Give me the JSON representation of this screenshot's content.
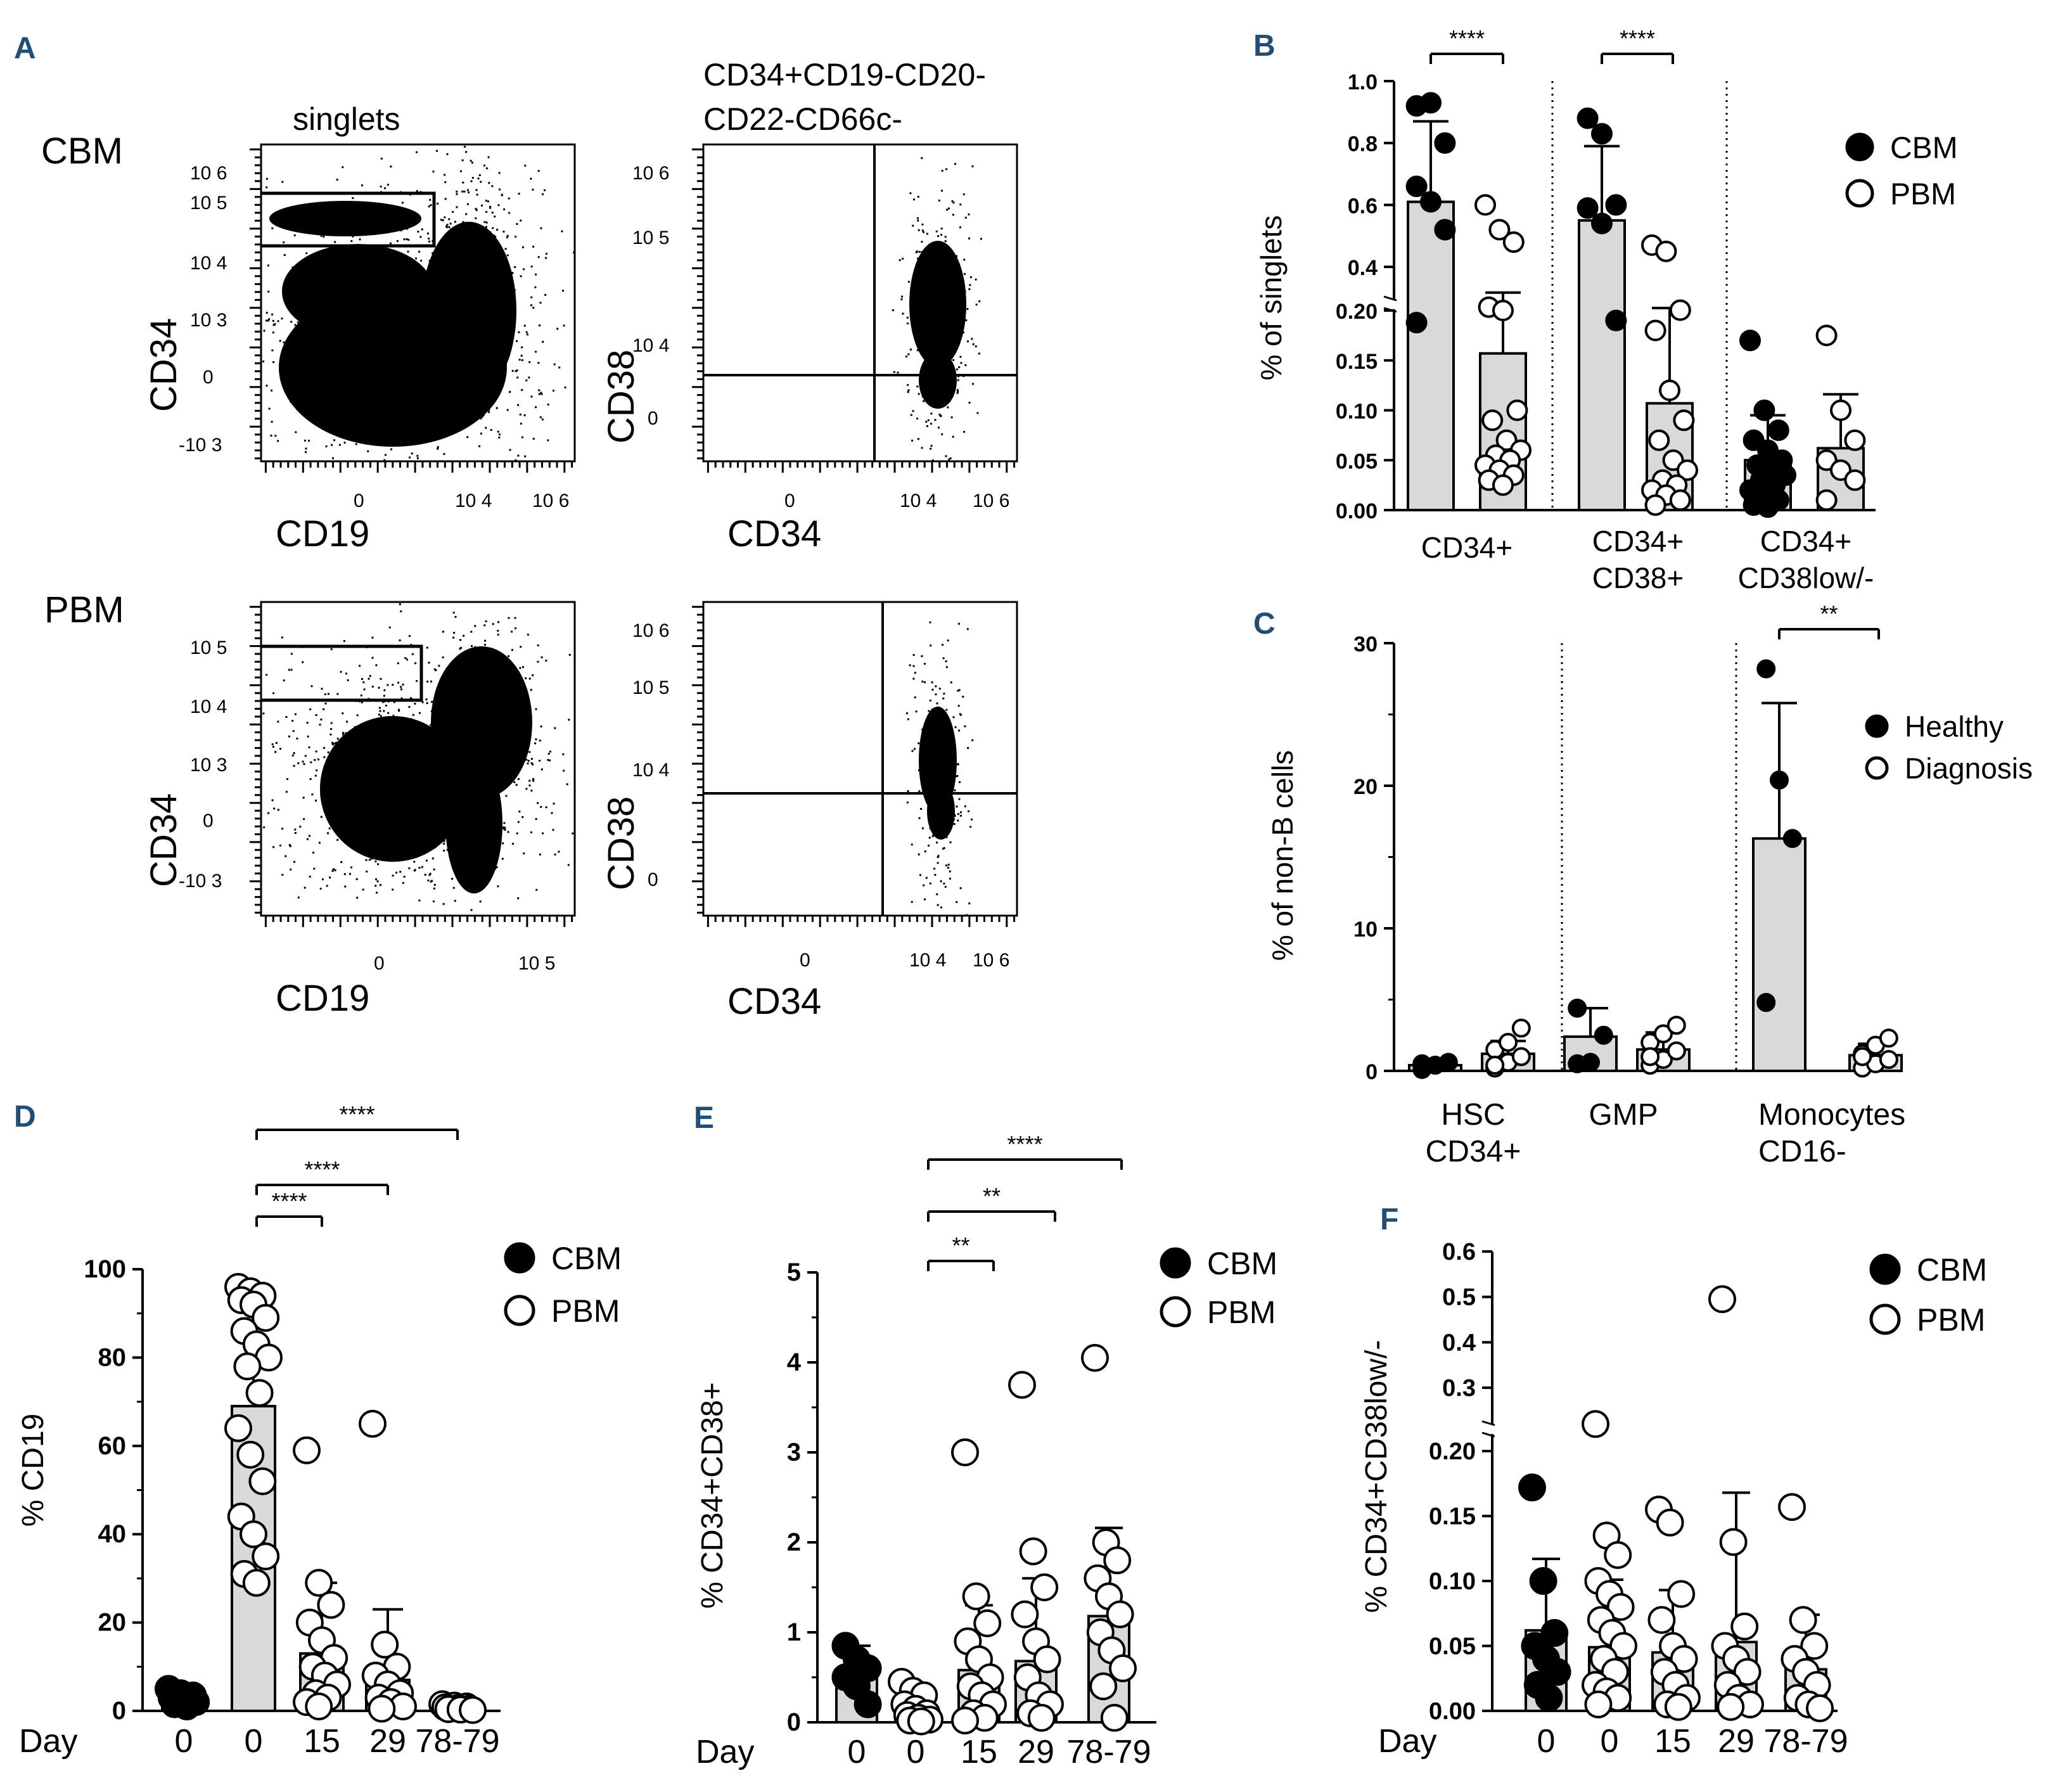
{
  "colors": {
    "panel_letter": "#1f4e79",
    "bar_fill": "#d9d9d9",
    "ink": "#000000",
    "paper": "#ffffff"
  },
  "flow": {
    "cbm_label": "CBM",
    "pbm_label": "PBM",
    "singlets_title": "singlets",
    "gate_title_line1": "CD34+CD19-CD20-",
    "gate_title_line2": "CD22-CD66c-",
    "axis_cd19": "CD19",
    "axis_cd34": "CD34",
    "axis_cd38": "CD38",
    "tick_labels": {
      "zero": "0",
      "e3": "10 3",
      "e4": "10 4",
      "e5": "10 5",
      "e6": "10 6",
      "neg_e3": "-10 3"
    }
  },
  "chart_data": [
    {
      "panel": "B",
      "type": "bar",
      "ylabel": "% of singlets",
      "categories": [
        "CD34+",
        "CD34+\nCD38+",
        "CD34+\nCD38low/-"
      ],
      "series": [
        {
          "name": "CBM",
          "filled": true,
          "means": [
            0.61,
            0.55,
            0.05
          ],
          "err": [
            0.26,
            0.24,
            0.045
          ],
          "points": [
            [
              0.92,
              0.93,
              0.8,
              0.66,
              0.61,
              0.52,
              0.22
            ],
            [
              0.88,
              0.83,
              0.6,
              0.59,
              0.54,
              0.19
            ],
            [
              0.17,
              0.1,
              0.08,
              0.07,
              0.06,
              0.05,
              0.045,
              0.04,
              0.035,
              0.03,
              0.025,
              0.02,
              0.015,
              0.01,
              0.005,
              0.003
            ]
          ]
        },
        {
          "name": "PBM",
          "filled": false,
          "means": [
            0.157,
            0.107,
            0.062
          ],
          "err": [
            0.16,
            0.16,
            0.054
          ],
          "points": [
            [
              0.6,
              0.52,
              0.48,
              0.27,
              0.2,
              0.1,
              0.09,
              0.07,
              0.06,
              0.055,
              0.05,
              0.045,
              0.04,
              0.035,
              0.03,
              0.025
            ],
            [
              0.47,
              0.45,
              0.26,
              0.18,
              0.12,
              0.09,
              0.07,
              0.05,
              0.04,
              0.03,
              0.025,
              0.02,
              0.015,
              0.01,
              0.005
            ],
            [
              0.175,
              0.1,
              0.07,
              0.05,
              0.04,
              0.03,
              0.01
            ]
          ]
        }
      ],
      "significance": [
        {
          "label": "****",
          "groups": [
            0
          ]
        },
        {
          "label": "****",
          "groups": [
            1
          ]
        }
      ],
      "yticks": [
        "0.00",
        "0.05",
        "0.10",
        "0.15",
        "0.20",
        "0.4",
        "0.6",
        "0.8",
        "1.0"
      ]
    },
    {
      "panel": "C",
      "type": "bar",
      "ylabel": "% of non-B cells",
      "categories": [
        "HSC\nCD34+",
        "GMP",
        "Monocytes\nCD16-"
      ],
      "ylim": [
        0,
        30
      ],
      "series": [
        {
          "name": "Healthy",
          "filled": true,
          "means": [
            0.4,
            2.4,
            16.3
          ],
          "err": [
            0.3,
            2.0,
            9.5
          ],
          "points": [
            [
              0.1,
              0.4,
              0.6,
              0.5
            ],
            [
              0.5,
              0.6,
              2.5,
              4.4
            ],
            [
              28.2,
              20.4,
              16.3,
              4.8
            ]
          ]
        },
        {
          "name": "Diagnosis",
          "filled": false,
          "means": [
            1.2,
            1.5,
            1.1
          ],
          "err": [
            0.9,
            1.2,
            0.8
          ],
          "points": [
            [
              0.2,
              0.6,
              1.0,
              1.5,
              2.0,
              3.0,
              0.4
            ],
            [
              0.4,
              0.8,
              1.4,
              2.0,
              2.6,
              3.2,
              1.0
            ],
            [
              0.2,
              0.5,
              0.8,
              1.2,
              1.8,
              2.3,
              1.0
            ]
          ]
        }
      ],
      "significance": [
        {
          "label": "**",
          "groups": [
            2
          ]
        }
      ],
      "yticks": [
        "0",
        "10",
        "20",
        "30"
      ]
    },
    {
      "panel": "D",
      "type": "bar",
      "ylabel": "% CD19",
      "xlabel": "Day",
      "categories": [
        "0",
        "0",
        "15",
        "29",
        "78-79"
      ],
      "groups": [
        "CBM",
        "PBM",
        "PBM",
        "PBM",
        "PBM"
      ],
      "ylim": [
        0,
        100
      ],
      "means": [
        3.5,
        69,
        13,
        7,
        1
      ],
      "err": [
        1.5,
        25,
        16,
        16,
        0.5
      ],
      "points": [
        [
          5,
          4,
          3.5,
          3,
          2.5,
          2,
          1.5,
          1
        ],
        [
          96,
          95,
          94,
          93,
          92,
          89,
          86,
          83,
          80,
          78,
          72,
          64,
          58,
          52,
          44,
          40,
          35,
          31,
          29
        ],
        [
          59,
          29,
          24,
          20,
          16,
          12,
          10,
          8,
          6,
          4,
          3,
          2,
          1
        ],
        [
          65,
          15,
          10,
          8,
          6,
          4,
          3,
          2,
          1,
          0.5
        ],
        [
          1.5,
          1.2,
          1,
          0.8,
          0.6,
          0.5,
          0.4,
          0.3,
          0.2
        ]
      ],
      "significance": [
        {
          "label": "****",
          "from": 1,
          "to": 2
        },
        {
          "label": "****",
          "from": 1,
          "to": 3
        },
        {
          "label": "****",
          "from": 1,
          "to": 4
        }
      ],
      "yticks": [
        "0",
        "20",
        "40",
        "60",
        "80",
        "100"
      ],
      "legend": [
        "CBM",
        "PBM"
      ]
    },
    {
      "panel": "E",
      "type": "bar",
      "ylabel": "% CD34+CD38+",
      "xlabel": "Day",
      "categories": [
        "0",
        "0",
        "15",
        "29",
        "78-79"
      ],
      "groups": [
        "CBM",
        "PBM",
        "PBM",
        "PBM",
        "PBM"
      ],
      "ylim": [
        0,
        5
      ],
      "means": [
        0.5,
        0.1,
        0.58,
        0.68,
        1.18
      ],
      "err": [
        0.35,
        0.15,
        0.72,
        0.92,
        0.98
      ],
      "points": [
        [
          0.85,
          0.7,
          0.6,
          0.5,
          0.4,
          0.2
        ],
        [
          0.45,
          0.35,
          0.3,
          0.2,
          0.15,
          0.1,
          0.08,
          0.05,
          0.03,
          0.02,
          0.01
        ],
        [
          3.0,
          1.4,
          1.1,
          0.9,
          0.7,
          0.5,
          0.4,
          0.3,
          0.2,
          0.1,
          0.05,
          0.02
        ],
        [
          3.75,
          1.9,
          1.5,
          1.2,
          0.9,
          0.7,
          0.5,
          0.3,
          0.2,
          0.1,
          0.05
        ],
        [
          4.05,
          2.0,
          1.8,
          1.6,
          1.4,
          1.2,
          1.0,
          0.8,
          0.6,
          0.4,
          0.05
        ]
      ],
      "significance": [
        {
          "label": "**",
          "from": 1,
          "to": 2
        },
        {
          "label": "**",
          "from": 1,
          "to": 3
        },
        {
          "label": "****",
          "from": 1,
          "to": 4
        }
      ],
      "yticks": [
        "0",
        "1",
        "2",
        "3",
        "4",
        "5"
      ],
      "legend": [
        "CBM",
        "PBM"
      ]
    },
    {
      "panel": "F",
      "type": "bar",
      "ylabel": "% CD34+CD38low/-",
      "xlabel": "Day",
      "categories": [
        "0",
        "0",
        "15",
        "29",
        "78-79"
      ],
      "groups": [
        "CBM",
        "PBM",
        "PBM",
        "PBM",
        "PBM"
      ],
      "means": [
        0.062,
        0.049,
        0.045,
        0.053,
        0.032
      ],
      "err": [
        0.055,
        0.052,
        0.048,
        0.115,
        0.042
      ],
      "points": [
        [
          0.172,
          0.1,
          0.06,
          0.05,
          0.04,
          0.03,
          0.02,
          0.01
        ],
        [
          0.22,
          0.135,
          0.12,
          0.1,
          0.09,
          0.08,
          0.07,
          0.06,
          0.05,
          0.04,
          0.03,
          0.02,
          0.015,
          0.01,
          0.005
        ],
        [
          0.155,
          0.145,
          0.09,
          0.07,
          0.05,
          0.04,
          0.03,
          0.02,
          0.01,
          0.005,
          0.003
        ],
        [
          0.495,
          0.13,
          0.065,
          0.05,
          0.04,
          0.03,
          0.02,
          0.01,
          0.005,
          0.003
        ],
        [
          0.157,
          0.07,
          0.05,
          0.04,
          0.03,
          0.02,
          0.01,
          0.005,
          0.002
        ]
      ],
      "yticks": [
        "0.00",
        "0.05",
        "0.10",
        "0.15",
        "0.20",
        "0.3",
        "0.4",
        "0.5",
        "0.6"
      ],
      "legend": [
        "CBM",
        "PBM"
      ]
    }
  ]
}
